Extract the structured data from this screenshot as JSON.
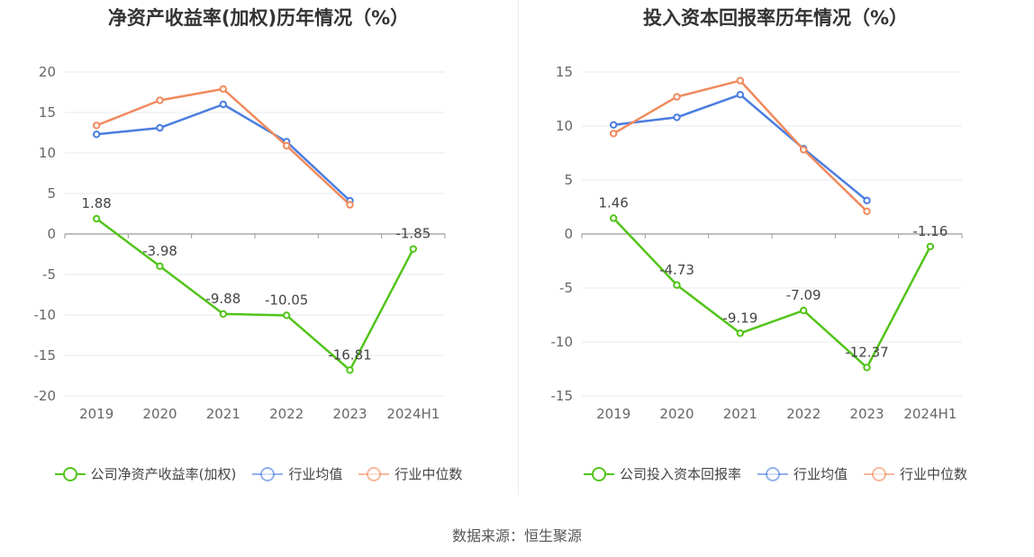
{
  "chart_data": [
    {
      "type": "line",
      "title": "净资产收益率(加权)历年情况（%）",
      "categories": [
        "2019",
        "2020",
        "2021",
        "2022",
        "2023",
        "2024H1"
      ],
      "ylim": [
        -20,
        20
      ],
      "yticks": [
        20,
        15,
        10,
        5,
        0,
        -5,
        -10,
        -15,
        -20
      ],
      "grid": true,
      "legend_position": "bottom",
      "series": [
        {
          "name": "公司净资产收益率(加权)",
          "color": "#52c41a",
          "labeled": true,
          "values": [
            1.88,
            -3.98,
            -9.88,
            -10.05,
            -16.81,
            -1.85
          ]
        },
        {
          "name": "行业均值",
          "color": "#4a7de0",
          "labeled": false,
          "values": [
            12.3,
            13.1,
            16.0,
            11.4,
            4.1,
            null
          ]
        },
        {
          "name": "行业中位数",
          "color": "#f08a5d",
          "labeled": false,
          "values": [
            13.4,
            16.5,
            17.9,
            10.9,
            3.6,
            null
          ]
        }
      ],
      "data_labels": [
        "1.88",
        "-3.98",
        "-9.88",
        "-10.05",
        "-16.81",
        "-1.85"
      ]
    },
    {
      "type": "line",
      "title": "投入资本回报率历年情况（%）",
      "categories": [
        "2019",
        "2020",
        "2021",
        "2022",
        "2023",
        "2024H1"
      ],
      "ylim": [
        -15,
        15
      ],
      "yticks": [
        15,
        10,
        5,
        0,
        -5,
        -10,
        -15
      ],
      "grid": true,
      "legend_position": "bottom",
      "series": [
        {
          "name": "公司投入资本回报率",
          "color": "#52c41a",
          "labeled": true,
          "values": [
            1.46,
            -4.73,
            -9.19,
            -7.09,
            -12.37,
            -1.16
          ]
        },
        {
          "name": "行业均值",
          "color": "#4a7de0",
          "labeled": false,
          "values": [
            10.1,
            10.8,
            12.9,
            7.9,
            3.1,
            null
          ]
        },
        {
          "name": "行业中位数",
          "color": "#f08a5d",
          "labeled": false,
          "values": [
            9.3,
            12.7,
            14.2,
            7.8,
            2.1,
            null
          ]
        }
      ],
      "data_labels": [
        "1.46",
        "-4.73",
        "-9.19",
        "-7.09",
        "-12.37",
        "-1.16"
      ]
    }
  ],
  "source": "数据来源：恒生聚源"
}
